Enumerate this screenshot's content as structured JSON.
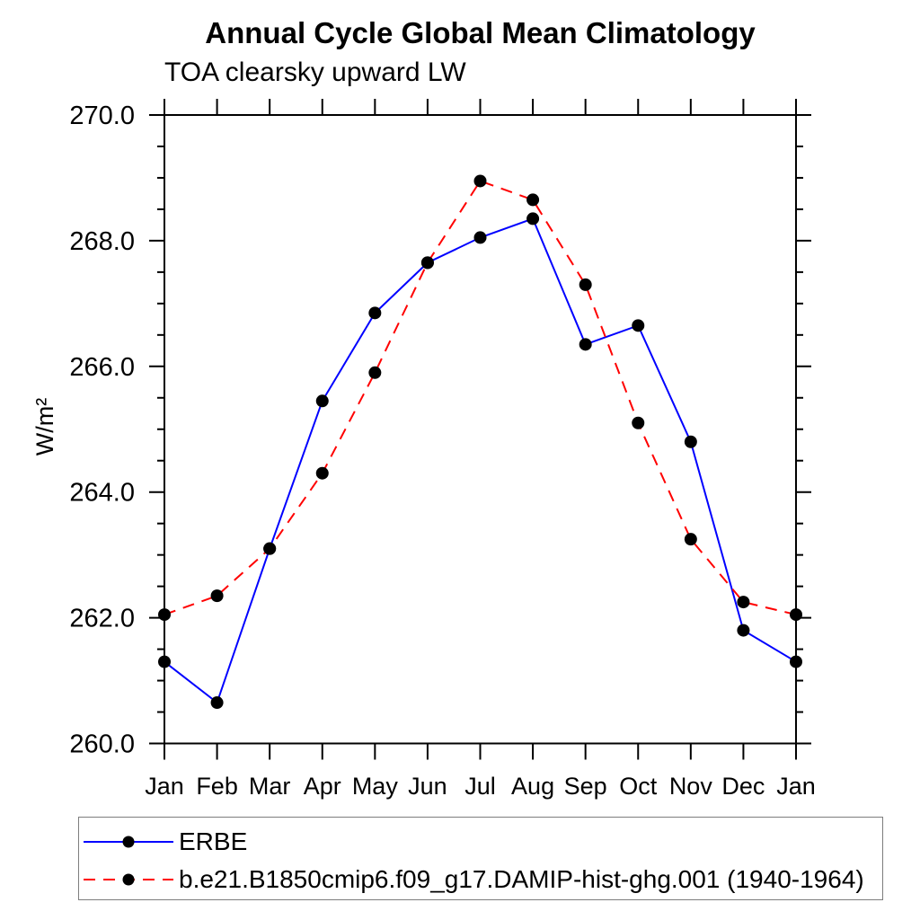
{
  "title": "Annual Cycle Global Mean Climatology",
  "subtitle": "TOA clearsky upward LW",
  "chart_data": {
    "type": "line",
    "title": "Annual Cycle Global Mean Climatology",
    "subtitle": "TOA clearsky upward LW",
    "xlabel": "",
    "ylabel": "W/m²",
    "x_categories": [
      "Jan",
      "Feb",
      "Mar",
      "Apr",
      "May",
      "Jun",
      "Jul",
      "Aug",
      "Sep",
      "Oct",
      "Nov",
      "Dec",
      "Jan"
    ],
    "ylim": [
      260.0,
      270.0
    ],
    "ytick_major_interval": 2.0,
    "ytick_minor_interval": 0.5,
    "ytick_labels": [
      "260.0",
      "262.0",
      "264.0",
      "266.0",
      "268.0",
      "270.0"
    ],
    "grid": "off",
    "legend_position": "bottom-left",
    "marker": "filled-circle",
    "marker_color": "#000000",
    "series": [
      {
        "name": "ERBE",
        "color": "#0000ff",
        "line_style": "solid",
        "values": [
          261.3,
          260.65,
          263.1,
          265.45,
          266.85,
          267.65,
          268.05,
          268.35,
          266.35,
          266.65,
          264.8,
          261.8,
          261.3
        ]
      },
      {
        "name": "b.e21.B1850cmip6.f09_g17.DAMIP-hist-ghg.001 (1940-1964)",
        "color": "#ff0000",
        "line_style": "dashed",
        "values": [
          262.05,
          262.35,
          263.1,
          264.3,
          265.9,
          267.65,
          268.95,
          268.65,
          267.3,
          265.1,
          263.25,
          262.25,
          262.05
        ]
      }
    ]
  }
}
